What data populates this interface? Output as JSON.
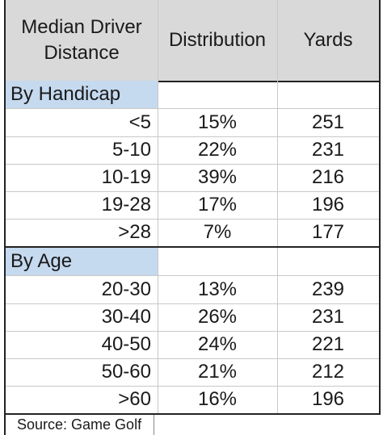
{
  "header": {
    "col1_line1": "Median Driver",
    "col1_line2": "Distance",
    "col2": "Distribution",
    "col3": "Yards"
  },
  "sections": [
    {
      "title": "By Handicap",
      "rows": [
        {
          "label": "<5",
          "distribution": "15%",
          "yards": "251"
        },
        {
          "label": "5-10",
          "distribution": "22%",
          "yards": "231"
        },
        {
          "label": "10-19",
          "distribution": "39%",
          "yards": "216"
        },
        {
          "label": "19-28",
          "distribution": "17%",
          "yards": "196"
        },
        {
          "label": ">28",
          "distribution": "7%",
          "yards": "177"
        }
      ]
    },
    {
      "title": "By Age",
      "rows": [
        {
          "label": "20-30",
          "distribution": "13%",
          "yards": "239"
        },
        {
          "label": "30-40",
          "distribution": "26%",
          "yards": "231"
        },
        {
          "label": "40-50",
          "distribution": "24%",
          "yards": "221"
        },
        {
          "label": "50-60",
          "distribution": "21%",
          "yards": "212"
        },
        {
          "label": ">60",
          "distribution": "16%",
          "yards": "196"
        }
      ]
    }
  ],
  "footer": {
    "source": "Source:  Game Golf"
  },
  "colors": {
    "header_bg": "#d9d9d9",
    "section_bg": "#c5d9ef",
    "border": "#222222",
    "grid": "#c8c8c8"
  }
}
